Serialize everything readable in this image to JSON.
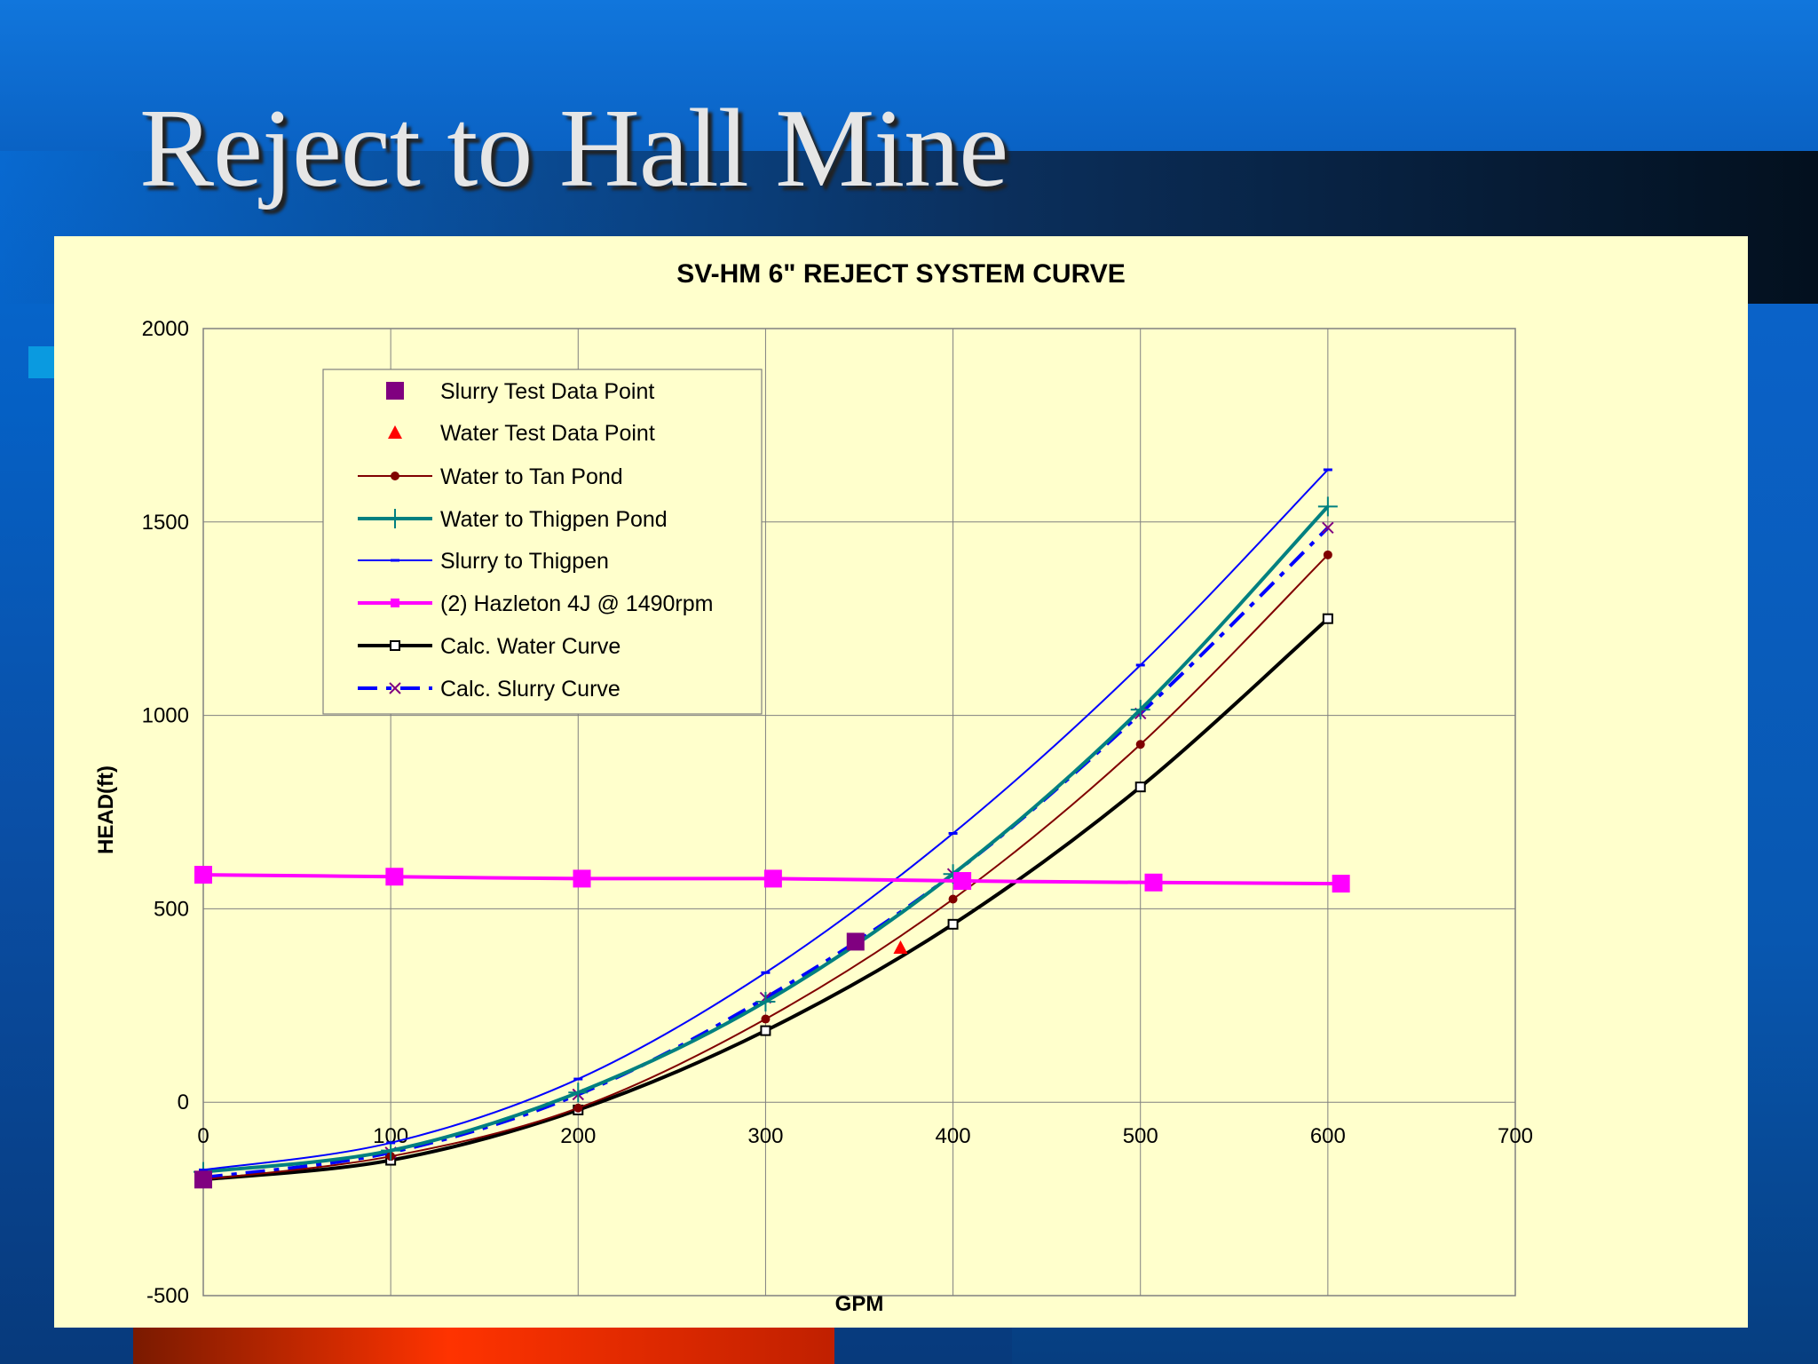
{
  "slide": {
    "title": "Reject to Hall Mine",
    "colors": {
      "background": "#0560c4",
      "panel": "#ffffcc",
      "accent_strip": "#ff3300"
    }
  },
  "chart_data": {
    "type": "line",
    "title": "SV-HM 6\" REJECT SYSTEM CURVE",
    "xlabel": "GPM",
    "ylabel": "HEAD(ft)",
    "xlim": [
      0,
      700
    ],
    "ylim": [
      -500,
      2000
    ],
    "x_ticks": [
      "0",
      "100",
      "200",
      "300",
      "400",
      "500",
      "600",
      "700"
    ],
    "y_ticks": [
      "-500",
      "0",
      "500",
      "1000",
      "1500",
      "2000"
    ],
    "grid": true,
    "legend_position": "top-left",
    "series": [
      {
        "name": "Slurry Test Data Point",
        "style": "marker",
        "marker": "square",
        "color": "#800080",
        "points": [
          [
            0,
            -200
          ],
          [
            348,
            415
          ]
        ]
      },
      {
        "name": "Water Test Data Point",
        "style": "marker",
        "marker": "triangle",
        "color": "#ff0000",
        "points": [
          [
            372,
            400
          ]
        ]
      },
      {
        "name": "Water to Tan Pond",
        "style": "line",
        "marker": "circle",
        "color": "#800000",
        "points": [
          [
            0,
            -200
          ],
          [
            100,
            -140
          ],
          [
            200,
            -15
          ],
          [
            300,
            215
          ],
          [
            400,
            525
          ],
          [
            500,
            925
          ],
          [
            600,
            1415
          ]
        ]
      },
      {
        "name": "Water to Thigpen Pond",
        "style": "line",
        "marker": "plus",
        "color": "#008080",
        "points": [
          [
            0,
            -180
          ],
          [
            100,
            -125
          ],
          [
            200,
            25
          ],
          [
            300,
            260
          ],
          [
            400,
            590
          ],
          [
            500,
            1015
          ],
          [
            600,
            1540
          ]
        ]
      },
      {
        "name": "Slurry to Thigpen",
        "style": "line",
        "marker": "dash",
        "color": "#0000ff",
        "points": [
          [
            0,
            -175
          ],
          [
            100,
            -105
          ],
          [
            200,
            60
          ],
          [
            300,
            335
          ],
          [
            400,
            695
          ],
          [
            500,
            1130
          ],
          [
            600,
            1635
          ]
        ]
      },
      {
        "name": "(2) Hazleton 4J @ 1490rpm",
        "style": "line",
        "marker": "square",
        "color": "#ff00ff",
        "points": [
          [
            0,
            588
          ],
          [
            102,
            583
          ],
          [
            202,
            578
          ],
          [
            304,
            578
          ],
          [
            405,
            572
          ],
          [
            507,
            568
          ],
          [
            607,
            565
          ]
        ]
      },
      {
        "name": "Calc. Water Curve",
        "style": "line",
        "marker": "open-square",
        "color": "#000000",
        "points": [
          [
            0,
            -200
          ],
          [
            100,
            -150
          ],
          [
            200,
            -20
          ],
          [
            300,
            185
          ],
          [
            400,
            460
          ],
          [
            500,
            815
          ],
          [
            600,
            1250
          ]
        ]
      },
      {
        "name": "Calc. Slurry Curve",
        "style": "dashed",
        "marker": "x",
        "color": "#0000ff",
        "points": [
          [
            0,
            -195
          ],
          [
            100,
            -130
          ],
          [
            200,
            20
          ],
          [
            300,
            270
          ],
          [
            400,
            590
          ],
          [
            500,
            1005
          ],
          [
            600,
            1485
          ]
        ]
      }
    ]
  }
}
